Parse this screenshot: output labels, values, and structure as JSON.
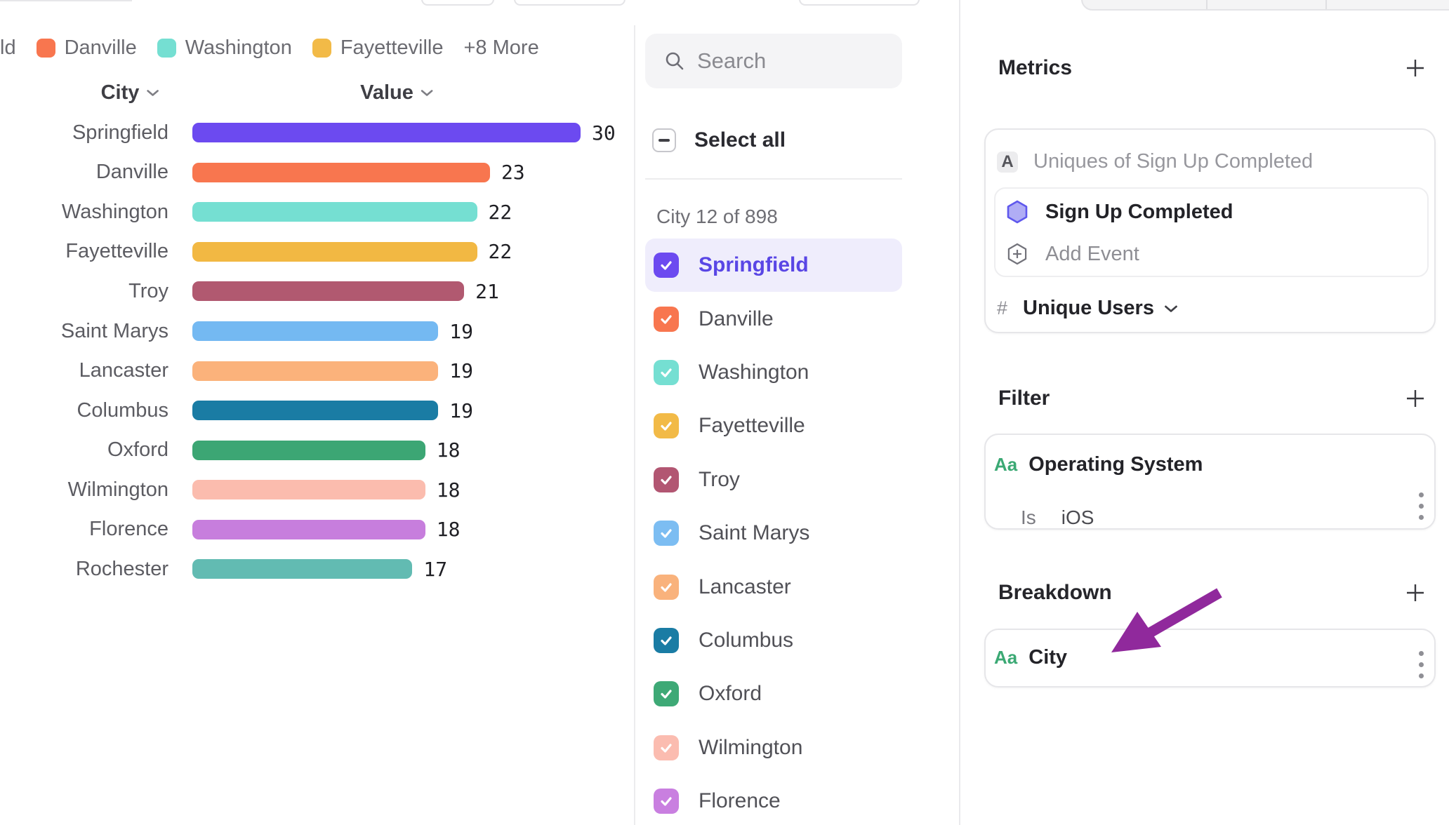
{
  "colors": {
    "accent_purple": "#6C4AF0",
    "arrow_purple": "#90299C",
    "property_green": "#3BA974",
    "selected_row_bg": "#EFEDFC",
    "selected_text": "#5946E5"
  },
  "legend": {
    "truncated_first_label": "ld",
    "items": [
      {
        "label": "Danville",
        "color": "#F8764F"
      },
      {
        "label": "Washington",
        "color": "#75DFD2"
      },
      {
        "label": "Fayetteville",
        "color": "#F2BA47"
      }
    ],
    "more_label": "+8 More"
  },
  "chart_data": {
    "type": "bar",
    "orientation": "horizontal",
    "column_headers": {
      "category": "City",
      "value": "Value"
    },
    "categories": [
      "Springfield",
      "Danville",
      "Washington",
      "Fayetteville",
      "Troy",
      "Saint Marys",
      "Lancaster",
      "Columbus",
      "Oxford",
      "Wilmington",
      "Florence",
      "Rochester"
    ],
    "values": [
      30,
      23,
      22,
      22,
      21,
      19,
      19,
      19,
      18,
      18,
      18,
      17
    ],
    "bar_colors": [
      "#6C4AF0",
      "#F8764F",
      "#75DFD2",
      "#F2B843",
      "#B15970",
      "#74B9F2",
      "#FBB27B",
      "#1A7CA4",
      "#3CA674",
      "#FBBCAE",
      "#C77EDD",
      "#62BBB2"
    ],
    "xlim": [
      0,
      30
    ],
    "value_labels_shown": true,
    "grid": false,
    "legend_position": "top"
  },
  "city_filter_panel": {
    "search_placeholder": "Search",
    "select_all_label": "Select all",
    "count_label": "City 12 of 898",
    "items": [
      {
        "name": "Springfield",
        "color": "#6C4AF0",
        "checked": true,
        "selected": true
      },
      {
        "name": "Danville",
        "color": "#F8764F",
        "checked": true,
        "selected": false
      },
      {
        "name": "Washington",
        "color": "#75DFD2",
        "checked": true,
        "selected": false
      },
      {
        "name": "Fayetteville",
        "color": "#F2BA47",
        "checked": true,
        "selected": false
      },
      {
        "name": "Troy",
        "color": "#B25672",
        "checked": true,
        "selected": false
      },
      {
        "name": "Saint Marys",
        "color": "#7CBDF2",
        "checked": true,
        "selected": false
      },
      {
        "name": "Lancaster",
        "color": "#F9B27C",
        "checked": true,
        "selected": false
      },
      {
        "name": "Columbus",
        "color": "#1A7CA4",
        "checked": true,
        "selected": false
      },
      {
        "name": "Oxford",
        "color": "#3EA976",
        "checked": true,
        "selected": false
      },
      {
        "name": "Wilmington",
        "color": "#FBBCB0",
        "checked": true,
        "selected": false
      },
      {
        "name": "Florence",
        "color": "#C97FE0",
        "checked": true,
        "selected": false
      }
    ]
  },
  "query_panel": {
    "metrics": {
      "title": "Metrics",
      "badge": "A",
      "summary": "Uniques of Sign Up Completed",
      "event_name": "Sign Up Completed",
      "add_event_label": "Add Event",
      "measure_prefix": "#",
      "measure_label": "Unique Users"
    },
    "filter": {
      "title": "Filter",
      "type_badge": "Aa",
      "property": "Operating System",
      "operator": "Is",
      "value": "iOS"
    },
    "breakdown": {
      "title": "Breakdown",
      "type_badge": "Aa",
      "property": "City"
    }
  }
}
